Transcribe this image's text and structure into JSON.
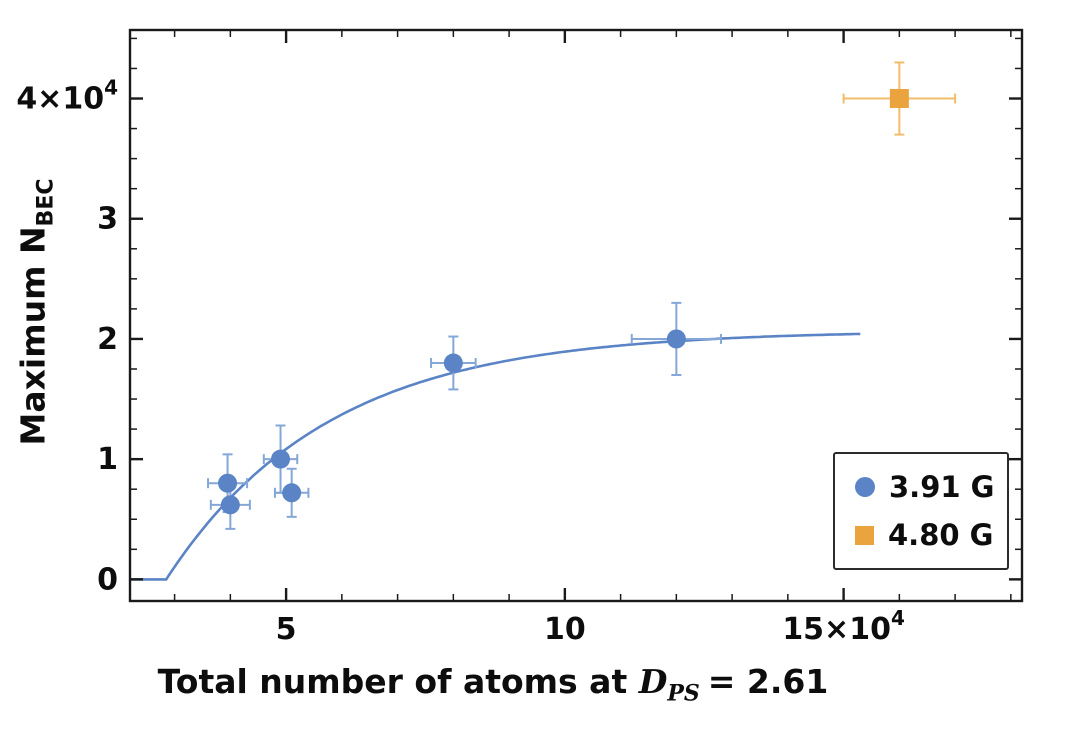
{
  "chart_data": {
    "type": "scatter",
    "title": "",
    "xlabel": "Total number of atoms at D_PS = 2.61",
    "ylabel": "Maximum N_BEC",
    "xlabel_parts": {
      "prefix": "Total number of atoms at",
      "var": "D",
      "var_sub": "PS",
      "suffix": "= 2.61"
    },
    "ylabel_parts": {
      "main": "Maximum N",
      "sub": "BEC"
    },
    "unit_scale": "×10^4",
    "xlim": [
      2.2,
      18.2
    ],
    "ylim": [
      -0.18,
      4.57
    ],
    "x_ticks": [
      {
        "value": 5,
        "label": "5"
      },
      {
        "value": 10,
        "label": "10"
      },
      {
        "value": 15,
        "label": "15×10",
        "sup": "4"
      }
    ],
    "y_ticks": [
      {
        "value": 0,
        "label": "0"
      },
      {
        "value": 1,
        "label": "1"
      },
      {
        "value": 2,
        "label": "2"
      },
      {
        "value": 3,
        "label": "3"
      },
      {
        "value": 4,
        "label": "4×10",
        "sup": "4"
      }
    ],
    "x_minor_step": 1,
    "y_minor_step": 0.25,
    "frame": true,
    "grid": false,
    "legend_position": "bottom-right",
    "series": [
      {
        "name": "3.91 G",
        "marker": "circle",
        "color": "#5b84c6",
        "errorbar_color": "#84a7d8",
        "points": [
          {
            "x": 3.95,
            "y": 0.8,
            "xerr": 0.35,
            "yerr": 0.24
          },
          {
            "x": 4.0,
            "y": 0.62,
            "xerr": 0.35,
            "yerr": 0.2
          },
          {
            "x": 4.9,
            "y": 1.0,
            "xerr": 0.3,
            "yerr": 0.28
          },
          {
            "x": 5.1,
            "y": 0.72,
            "xerr": 0.3,
            "yerr": 0.2
          },
          {
            "x": 8.0,
            "y": 1.8,
            "xerr": 0.4,
            "yerr": 0.22
          },
          {
            "x": 12.0,
            "y": 2.0,
            "xerr": 0.8,
            "yerr": 0.3
          }
        ]
      },
      {
        "name": "4.80 G",
        "marker": "square",
        "color": "#eba33d",
        "errorbar_color": "#f1bd6a",
        "points": [
          {
            "x": 16.0,
            "y": 4.0,
            "xerr": 1.0,
            "yerr": 0.3
          }
        ]
      }
    ],
    "fit": {
      "series": "3.91 G",
      "model": "A*(1-exp(-(x-x0)/tau)) for x>x0, else 0",
      "A": 2.07,
      "x0": 2.85,
      "tau": 2.9,
      "x_range": [
        2.2,
        15.3
      ],
      "color": "#5b84c6"
    }
  }
}
